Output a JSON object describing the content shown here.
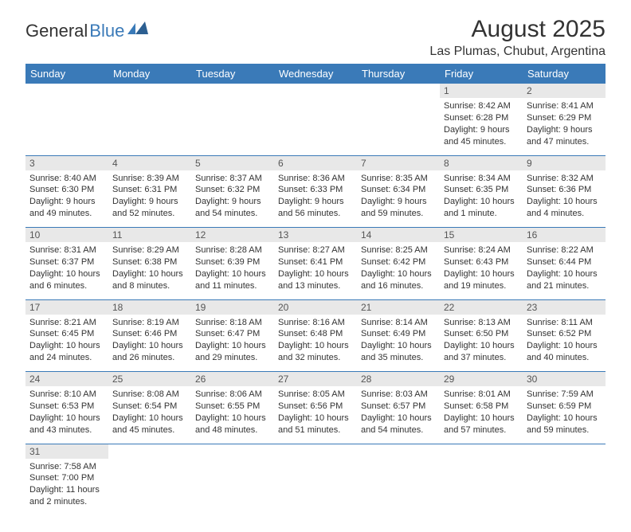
{
  "logo": {
    "general": "General",
    "blue": "Blue"
  },
  "title": {
    "month": "August 2025",
    "location": "Las Plumas, Chubut, Argentina"
  },
  "colors": {
    "header_bg": "#3a7ab8",
    "header_fg": "#ffffff",
    "daynum_bg": "#e8e8e8",
    "daynum_fg": "#555555",
    "text": "#333333",
    "logo_blue": "#3a7ab8",
    "row_border": "#3a7ab8",
    "page_bg": "#ffffff"
  },
  "fonts": {
    "title_month_size": 30,
    "title_location_size": 16,
    "weekday_size": 13,
    "daynum_size": 12,
    "cell_size": 11,
    "logo_size": 22
  },
  "weekdays": [
    "Sunday",
    "Monday",
    "Tuesday",
    "Wednesday",
    "Thursday",
    "Friday",
    "Saturday"
  ],
  "weeks": [
    {
      "nums": [
        "",
        "",
        "",
        "",
        "",
        "1",
        "2"
      ],
      "cells": [
        null,
        null,
        null,
        null,
        null,
        {
          "sunrise": "8:42 AM",
          "sunset": "6:28 PM",
          "daylight1": "Daylight: 9 hours",
          "daylight2": "and 45 minutes."
        },
        {
          "sunrise": "8:41 AM",
          "sunset": "6:29 PM",
          "daylight1": "Daylight: 9 hours",
          "daylight2": "and 47 minutes."
        }
      ]
    },
    {
      "nums": [
        "3",
        "4",
        "5",
        "6",
        "7",
        "8",
        "9"
      ],
      "cells": [
        {
          "sunrise": "8:40 AM",
          "sunset": "6:30 PM",
          "daylight1": "Daylight: 9 hours",
          "daylight2": "and 49 minutes."
        },
        {
          "sunrise": "8:39 AM",
          "sunset": "6:31 PM",
          "daylight1": "Daylight: 9 hours",
          "daylight2": "and 52 minutes."
        },
        {
          "sunrise": "8:37 AM",
          "sunset": "6:32 PM",
          "daylight1": "Daylight: 9 hours",
          "daylight2": "and 54 minutes."
        },
        {
          "sunrise": "8:36 AM",
          "sunset": "6:33 PM",
          "daylight1": "Daylight: 9 hours",
          "daylight2": "and 56 minutes."
        },
        {
          "sunrise": "8:35 AM",
          "sunset": "6:34 PM",
          "daylight1": "Daylight: 9 hours",
          "daylight2": "and 59 minutes."
        },
        {
          "sunrise": "8:34 AM",
          "sunset": "6:35 PM",
          "daylight1": "Daylight: 10 hours",
          "daylight2": "and 1 minute."
        },
        {
          "sunrise": "8:32 AM",
          "sunset": "6:36 PM",
          "daylight1": "Daylight: 10 hours",
          "daylight2": "and 4 minutes."
        }
      ]
    },
    {
      "nums": [
        "10",
        "11",
        "12",
        "13",
        "14",
        "15",
        "16"
      ],
      "cells": [
        {
          "sunrise": "8:31 AM",
          "sunset": "6:37 PM",
          "daylight1": "Daylight: 10 hours",
          "daylight2": "and 6 minutes."
        },
        {
          "sunrise": "8:29 AM",
          "sunset": "6:38 PM",
          "daylight1": "Daylight: 10 hours",
          "daylight2": "and 8 minutes."
        },
        {
          "sunrise": "8:28 AM",
          "sunset": "6:39 PM",
          "daylight1": "Daylight: 10 hours",
          "daylight2": "and 11 minutes."
        },
        {
          "sunrise": "8:27 AM",
          "sunset": "6:41 PM",
          "daylight1": "Daylight: 10 hours",
          "daylight2": "and 13 minutes."
        },
        {
          "sunrise": "8:25 AM",
          "sunset": "6:42 PM",
          "daylight1": "Daylight: 10 hours",
          "daylight2": "and 16 minutes."
        },
        {
          "sunrise": "8:24 AM",
          "sunset": "6:43 PM",
          "daylight1": "Daylight: 10 hours",
          "daylight2": "and 19 minutes."
        },
        {
          "sunrise": "8:22 AM",
          "sunset": "6:44 PM",
          "daylight1": "Daylight: 10 hours",
          "daylight2": "and 21 minutes."
        }
      ]
    },
    {
      "nums": [
        "17",
        "18",
        "19",
        "20",
        "21",
        "22",
        "23"
      ],
      "cells": [
        {
          "sunrise": "8:21 AM",
          "sunset": "6:45 PM",
          "daylight1": "Daylight: 10 hours",
          "daylight2": "and 24 minutes."
        },
        {
          "sunrise": "8:19 AM",
          "sunset": "6:46 PM",
          "daylight1": "Daylight: 10 hours",
          "daylight2": "and 26 minutes."
        },
        {
          "sunrise": "8:18 AM",
          "sunset": "6:47 PM",
          "daylight1": "Daylight: 10 hours",
          "daylight2": "and 29 minutes."
        },
        {
          "sunrise": "8:16 AM",
          "sunset": "6:48 PM",
          "daylight1": "Daylight: 10 hours",
          "daylight2": "and 32 minutes."
        },
        {
          "sunrise": "8:14 AM",
          "sunset": "6:49 PM",
          "daylight1": "Daylight: 10 hours",
          "daylight2": "and 35 minutes."
        },
        {
          "sunrise": "8:13 AM",
          "sunset": "6:50 PM",
          "daylight1": "Daylight: 10 hours",
          "daylight2": "and 37 minutes."
        },
        {
          "sunrise": "8:11 AM",
          "sunset": "6:52 PM",
          "daylight1": "Daylight: 10 hours",
          "daylight2": "and 40 minutes."
        }
      ]
    },
    {
      "nums": [
        "24",
        "25",
        "26",
        "27",
        "28",
        "29",
        "30"
      ],
      "cells": [
        {
          "sunrise": "8:10 AM",
          "sunset": "6:53 PM",
          "daylight1": "Daylight: 10 hours",
          "daylight2": "and 43 minutes."
        },
        {
          "sunrise": "8:08 AM",
          "sunset": "6:54 PM",
          "daylight1": "Daylight: 10 hours",
          "daylight2": "and 45 minutes."
        },
        {
          "sunrise": "8:06 AM",
          "sunset": "6:55 PM",
          "daylight1": "Daylight: 10 hours",
          "daylight2": "and 48 minutes."
        },
        {
          "sunrise": "8:05 AM",
          "sunset": "6:56 PM",
          "daylight1": "Daylight: 10 hours",
          "daylight2": "and 51 minutes."
        },
        {
          "sunrise": "8:03 AM",
          "sunset": "6:57 PM",
          "daylight1": "Daylight: 10 hours",
          "daylight2": "and 54 minutes."
        },
        {
          "sunrise": "8:01 AM",
          "sunset": "6:58 PM",
          "daylight1": "Daylight: 10 hours",
          "daylight2": "and 57 minutes."
        },
        {
          "sunrise": "7:59 AM",
          "sunset": "6:59 PM",
          "daylight1": "Daylight: 10 hours",
          "daylight2": "and 59 minutes."
        }
      ]
    },
    {
      "nums": [
        "31",
        "",
        "",
        "",
        "",
        "",
        ""
      ],
      "cells": [
        {
          "sunrise": "7:58 AM",
          "sunset": "7:00 PM",
          "daylight1": "Daylight: 11 hours",
          "daylight2": "and 2 minutes."
        },
        null,
        null,
        null,
        null,
        null,
        null
      ]
    }
  ],
  "labels": {
    "sunrise_prefix": "Sunrise: ",
    "sunset_prefix": "Sunset: "
  }
}
